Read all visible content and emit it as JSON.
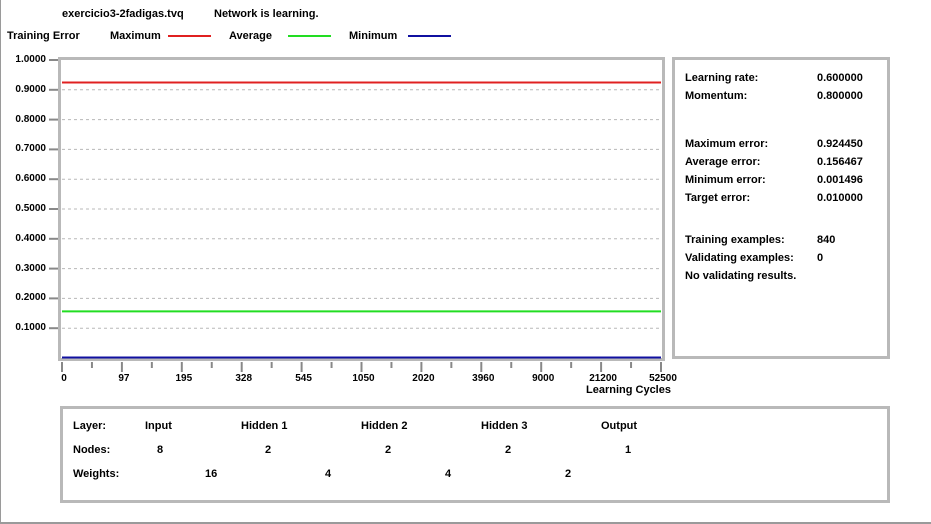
{
  "header": {
    "filename": "exercicio3-2fadigas.tvq",
    "status": "Network is learning."
  },
  "legend": {
    "title": "Training Error",
    "items": [
      {
        "label": "Maximum",
        "color": "#e02020"
      },
      {
        "label": "Average",
        "color": "#22dd22"
      },
      {
        "label": "Minimum",
        "color": "#1010a0"
      }
    ]
  },
  "chart_data": {
    "type": "line",
    "title": "",
    "xlabel": "Learning Cycles",
    "ylabel": "Training Error",
    "x_tick_labels": [
      "0",
      "97",
      "195",
      "328",
      "545",
      "1050",
      "2020",
      "3960",
      "9000",
      "21200",
      "52500"
    ],
    "y_tick_labels": [
      "1.0000",
      "0.9000",
      "0.8000",
      "0.7000",
      "0.6000",
      "0.5000",
      "0.4000",
      "0.3000",
      "0.2000",
      "0.1000"
    ],
    "ylim": [
      0,
      1.0
    ],
    "grid": true,
    "legend_position": "top",
    "series": [
      {
        "name": "Maximum",
        "color": "#e02020",
        "values": [
          0.9245,
          0.9245
        ]
      },
      {
        "name": "Average",
        "color": "#22dd22",
        "values": [
          0.1565,
          0.1565
        ]
      },
      {
        "name": "Minimum",
        "color": "#1010a0",
        "values": [
          0.0015,
          0.0015
        ]
      }
    ]
  },
  "info": {
    "learning_rate_label": "Learning rate:",
    "learning_rate": "0.600000",
    "momentum_label": "Momentum:",
    "momentum": "0.800000",
    "max_error_label": "Maximum error:",
    "max_error": "0.924450",
    "avg_error_label": "Average error:",
    "avg_error": "0.156467",
    "min_error_label": "Minimum error:",
    "min_error": "0.001496",
    "target_error_label": "Target error:",
    "target_error": "0.010000",
    "training_examples_label": "Training examples:",
    "training_examples": "840",
    "validating_examples_label": "Validating examples:",
    "validating_examples": "0",
    "no_validating": "No validating results."
  },
  "network": {
    "layer_label": "Layer:",
    "nodes_label": "Nodes:",
    "weights_label": "Weights:",
    "layers": [
      "Input",
      "Hidden 1",
      "Hidden 2",
      "Hidden 3",
      "Output"
    ],
    "nodes": [
      "8",
      "2",
      "2",
      "2",
      "1"
    ],
    "weights": [
      "16",
      "4",
      "4",
      "2"
    ]
  }
}
